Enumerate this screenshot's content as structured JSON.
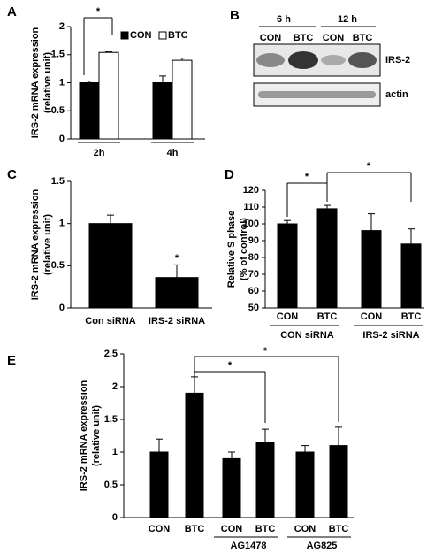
{
  "chart_data": [
    {
      "type": "bar",
      "panel_label": "A",
      "y_label": [
        "IRS-2 mRNA expression",
        "(relative unit)"
      ],
      "categories": [
        "2h",
        "4h"
      ],
      "series": [
        {
          "name": "CON",
          "color": "#000000",
          "values": [
            1,
            1
          ],
          "errors": [
            0.03,
            0.12
          ]
        },
        {
          "name": "BTC",
          "color": "#ffffff",
          "values": [
            1.54,
            1.4
          ],
          "errors": [
            0.01,
            0.04
          ]
        }
      ],
      "ylim": [
        0,
        2
      ],
      "yticks": [
        0,
        0.5,
        1,
        1.5,
        2
      ],
      "legend": "top",
      "annotations": [
        "*"
      ]
    },
    {
      "type": "bar",
      "panel_label": "C",
      "y_label": [
        "IRS-2 mRNA expression",
        "(relative unit)"
      ],
      "categories": [
        "Con siRNA",
        "IRS-2 siRNA"
      ],
      "values": [
        1,
        0.36
      ],
      "errors": [
        0.1,
        0.15
      ],
      "color": "#000000",
      "ylim": [
        0,
        1.5
      ],
      "yticks": [
        0,
        0.5,
        1,
        1.5
      ],
      "annotations": [
        "*"
      ]
    },
    {
      "type": "bar",
      "panel_label": "D",
      "y_label": [
        "Relative S phase",
        "(% of control)"
      ],
      "categories": [
        "CON",
        "BTC",
        "CON",
        "BTC"
      ],
      "group_labels": [
        "CON siRNA",
        "IRS-2 siRNA"
      ],
      "values": [
        100,
        109,
        96,
        88
      ],
      "errors": [
        2,
        2,
        10,
        9
      ],
      "color": "#000000",
      "ylim": [
        50,
        120
      ],
      "yticks": [
        50,
        60,
        70,
        80,
        90,
        100,
        110,
        120
      ],
      "annotations": [
        "*",
        "*"
      ]
    },
    {
      "type": "bar",
      "panel_label": "E",
      "y_label": [
        "IRS-2 mRNA expression",
        "(relative unit)"
      ],
      "categories": [
        "CON",
        "BTC",
        "CON",
        "BTC",
        "CON",
        "BTC"
      ],
      "group_labels": [
        null,
        "AG1478",
        "AG825"
      ],
      "values": [
        1,
        1.9,
        0.9,
        1.15,
        1,
        1.1
      ],
      "errors": [
        0.2,
        0.25,
        0.1,
        0.2,
        0.1,
        0.28
      ],
      "color": "#000000",
      "ylim": [
        0,
        2.5
      ],
      "yticks": [
        0,
        0.5,
        1,
        1.5,
        2,
        2.5
      ],
      "annotations": [
        "*",
        "*"
      ]
    }
  ],
  "blot": {
    "panel_label": "B",
    "time_points": [
      "6 h",
      "12 h"
    ],
    "lanes": [
      "CON",
      "BTC",
      "CON",
      "BTC"
    ],
    "bands": [
      "IRS-2",
      "actin"
    ]
  }
}
